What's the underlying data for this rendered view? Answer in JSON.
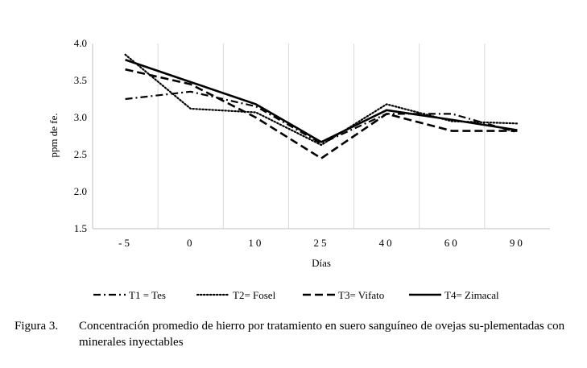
{
  "chart_data": {
    "type": "line",
    "categories": [
      "-5",
      "0",
      "10",
      "25",
      "40",
      "60",
      "90"
    ],
    "series": [
      {
        "name": "T1 = Tes",
        "style": "dash-dot",
        "values": [
          3.25,
          3.35,
          3.15,
          2.65,
          3.05,
          3.05,
          2.8
        ]
      },
      {
        "name": "T2= Fosel",
        "style": "dotted",
        "values": [
          3.85,
          3.12,
          3.07,
          2.63,
          3.18,
          2.95,
          2.92
        ]
      },
      {
        "name": "T3= Vifato",
        "style": "dashed",
        "values": [
          3.65,
          3.45,
          3.0,
          2.45,
          3.05,
          2.82,
          2.82
        ]
      },
      {
        "name": "T4= Zimacal",
        "style": "solid",
        "values": [
          3.78,
          3.48,
          3.18,
          2.67,
          3.1,
          2.97,
          2.83
        ]
      }
    ],
    "xlabel": "Días",
    "ylabel": "ppm de fe.",
    "ylim": [
      1.5,
      4.0
    ],
    "yticks": [
      "1.5",
      "2.0",
      "2.5",
      "3.0",
      "3.5",
      "4.0"
    ],
    "grid": "vertical",
    "legend": "bottom"
  },
  "caption": {
    "label": "Figura 3.",
    "text": "Concentración promedio de hierro por tratamiento en suero sanguíneo de ovejas su-plementadas con minerales inyectables"
  },
  "colors": {
    "lines": "#000000",
    "grid": "#d9d9d9",
    "axis": "#bfbfbf"
  }
}
